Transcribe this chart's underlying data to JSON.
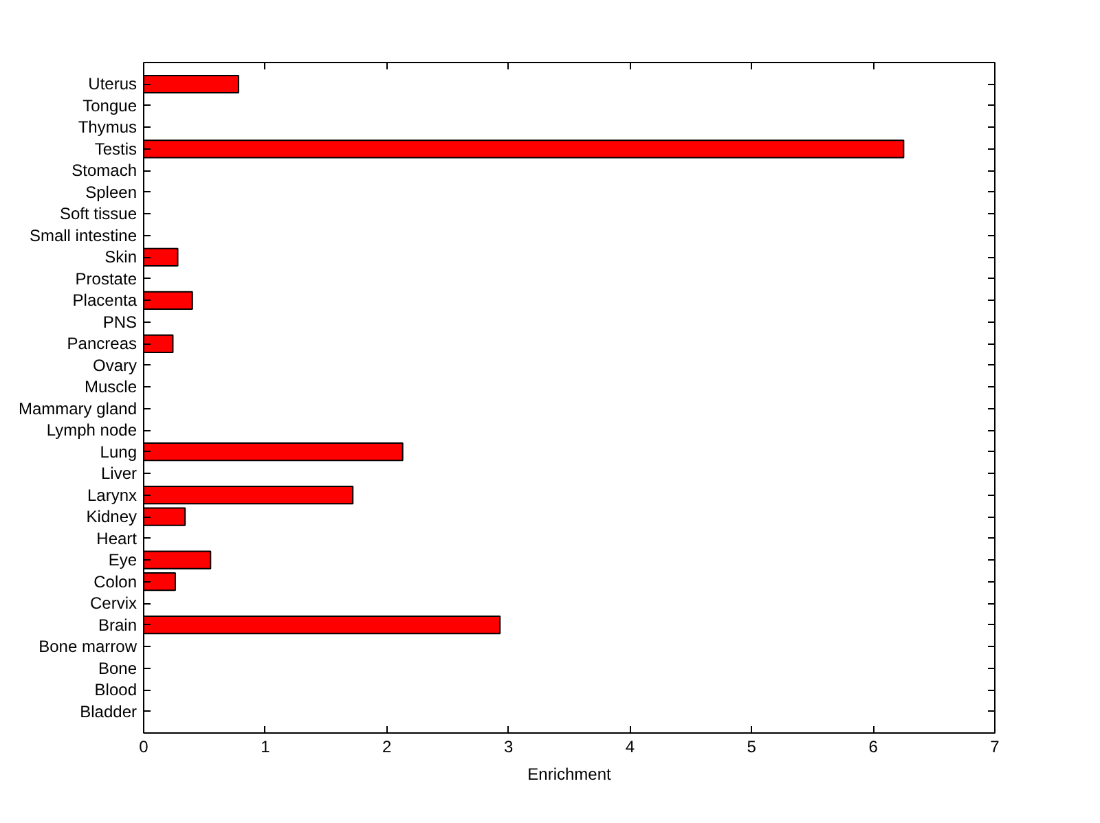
{
  "chart_data": {
    "type": "bar",
    "orientation": "horizontal",
    "xlabel": "Enrichment",
    "categories": [
      "Uterus",
      "Tongue",
      "Thymus",
      "Testis",
      "Stomach",
      "Spleen",
      "Soft tissue",
      "Small intestine",
      "Skin",
      "Prostate",
      "Placenta",
      "PNS",
      "Pancreas",
      "Ovary",
      "Muscle",
      "Mammary gland",
      "Lymph node",
      "Lung",
      "Liver",
      "Larynx",
      "Kidney",
      "Heart",
      "Eye",
      "Colon",
      "Cervix",
      "Brain",
      "Bone marrow",
      "Bone",
      "Blood",
      "Bladder"
    ],
    "values": [
      0.78,
      0,
      0,
      6.25,
      0,
      0,
      0,
      0,
      0.28,
      0,
      0.4,
      0,
      0.24,
      0,
      0,
      0,
      0,
      2.13,
      0,
      1.72,
      0.34,
      0,
      0.55,
      0.26,
      0,
      2.93,
      0,
      0,
      0,
      0
    ],
    "color": "#ff0000",
    "xlim": [
      0,
      7
    ],
    "xticks": [
      0,
      1,
      2,
      3,
      4,
      5,
      6,
      7
    ],
    "grid": false
  }
}
